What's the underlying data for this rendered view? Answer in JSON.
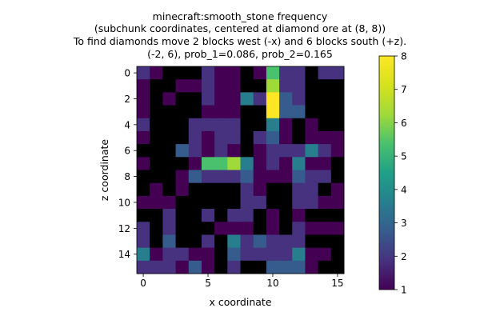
{
  "chart_data": {
    "type": "heatmap",
    "title_lines": [
      "minecraft:smooth_stone frequency",
      "(subchunk coordinates, centered at diamond ore at (8, 8))",
      "To find diamonds move 2 blocks west (-x) and 6 blocks south (+z).",
      "(-2, 6), prob_1=0.086, prob_2=0.165"
    ],
    "xlabel": "x coordinate",
    "ylabel": "z coordinate",
    "x_ticks": [
      0,
      5,
      10,
      15
    ],
    "y_ticks": [
      0,
      2,
      4,
      6,
      8,
      10,
      12,
      14
    ],
    "colorbar_ticks": [
      1,
      2,
      3,
      4,
      5,
      6,
      7,
      8
    ],
    "value_range": [
      1,
      8
    ],
    "colormap": "viridis",
    "grid": [
      [
        2,
        1,
        0,
        0,
        0,
        2,
        1,
        1,
        0,
        1,
        5,
        2,
        2,
        0,
        2,
        2
      ],
      [
        1,
        0,
        0,
        1,
        1,
        2,
        1,
        1,
        0,
        0,
        6,
        2,
        2,
        0,
        0,
        0
      ],
      [
        1,
        0,
        1,
        0,
        0,
        2,
        1,
        1,
        4,
        2,
        8,
        3,
        2,
        0,
        0,
        0
      ],
      [
        1,
        0,
        0,
        0,
        0,
        1,
        1,
        1,
        0,
        0,
        8,
        3,
        3,
        0,
        0,
        0
      ],
      [
        2,
        0,
        0,
        0,
        2,
        2,
        2,
        2,
        0,
        0,
        4,
        1,
        0,
        1,
        0,
        0
      ],
      [
        1,
        0,
        0,
        0,
        2,
        1,
        2,
        2,
        0,
        2,
        3,
        1,
        0,
        1,
        1,
        1
      ],
      [
        0,
        0,
        0,
        3,
        2,
        1,
        2,
        1,
        0,
        1,
        2,
        2,
        2,
        4,
        2,
        1
      ],
      [
        1,
        0,
        0,
        0,
        1,
        5,
        5,
        6,
        4,
        1,
        2,
        1,
        4,
        1,
        1,
        0
      ],
      [
        0,
        0,
        0,
        1,
        3,
        2,
        2,
        2,
        3,
        1,
        1,
        1,
        3,
        2,
        2,
        0
      ],
      [
        0,
        1,
        0,
        1,
        0,
        0,
        0,
        0,
        2,
        1,
        0,
        0,
        2,
        2,
        0,
        1
      ],
      [
        1,
        1,
        1,
        0,
        0,
        0,
        0,
        0,
        2,
        2,
        0,
        0,
        2,
        2,
        1,
        1
      ],
      [
        0,
        0,
        2,
        0,
        0,
        2,
        0,
        2,
        2,
        0,
        1,
        0,
        1,
        0,
        0,
        0
      ],
      [
        2,
        0,
        2,
        0,
        0,
        0,
        1,
        1,
        1,
        0,
        1,
        0,
        2,
        1,
        1,
        1
      ],
      [
        2,
        0,
        3,
        0,
        0,
        2,
        0,
        4,
        2,
        3,
        2,
        2,
        2,
        0,
        0,
        0
      ],
      [
        4,
        1,
        2,
        2,
        1,
        1,
        0,
        3,
        2,
        2,
        2,
        2,
        4,
        1,
        1,
        0
      ],
      [
        2,
        2,
        2,
        1,
        3,
        1,
        0,
        2,
        0,
        0,
        3,
        3,
        3,
        1,
        0,
        0
      ]
    ]
  }
}
